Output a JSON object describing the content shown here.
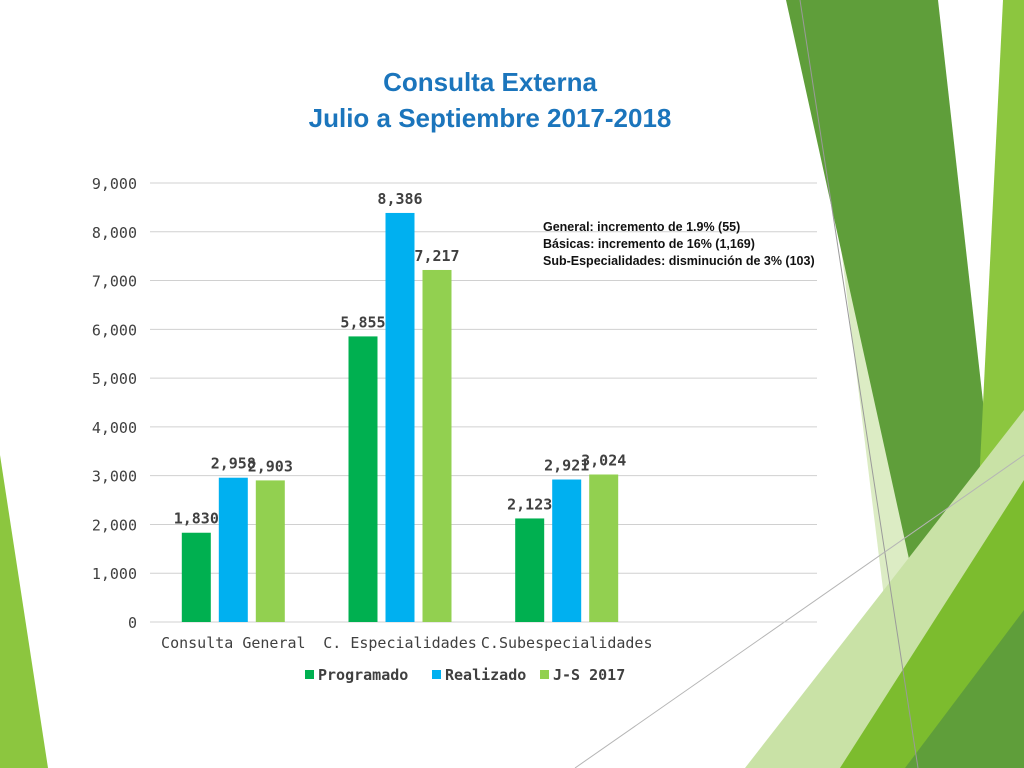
{
  "slide": {
    "title_line1": "Consulta Externa",
    "title_line2": "Julio a Septiembre 2017-2018",
    "annotations": [
      "General: incremento de 1.9% (55)",
      "Básicas: incremento de 16% (1,169)",
      "Sub-Especialidades: disminución de 3% (103)"
    ]
  },
  "colors": {
    "programado": "#00b050",
    "realizado": "#00b0f0",
    "js2017": "#92d050",
    "decor_dark": "#5f9e3a",
    "decor_mid": "#7cbc2e",
    "decor_light": "#c9e2a6"
  },
  "chart_data": {
    "type": "bar",
    "categories": [
      "Consulta General",
      "C. Especialidades",
      "C.Subespecialidades"
    ],
    "series": [
      {
        "name": "Programado",
        "values": [
          1830,
          5855,
          2123
        ],
        "labels": [
          "1,830",
          "5,855",
          "2,123"
        ]
      },
      {
        "name": "Realizado",
        "values": [
          2958,
          8386,
          2921
        ],
        "labels": [
          "2,958",
          "8,386",
          "2,921"
        ]
      },
      {
        "name": "J-S 2017",
        "values": [
          2903,
          7217,
          3024
        ],
        "labels": [
          "2,903",
          "7,217",
          "3,024"
        ]
      }
    ],
    "ylim": [
      0,
      9000
    ],
    "yticks": [
      0,
      1000,
      2000,
      3000,
      4000,
      5000,
      6000,
      7000,
      8000,
      9000
    ],
    "ytick_labels": [
      "0",
      "1,000",
      "2,000",
      "3,000",
      "4,000",
      "5,000",
      "6,000",
      "7,000",
      "8,000",
      "9,000"
    ],
    "grid": true,
    "legend_position": "bottom"
  }
}
